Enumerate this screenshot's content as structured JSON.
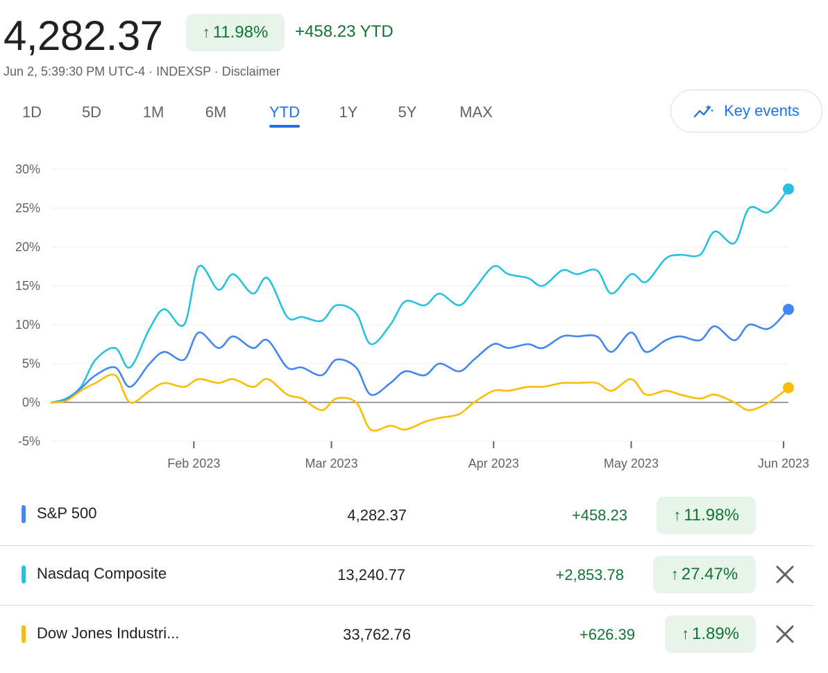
{
  "header": {
    "price": "4,282.37",
    "pct_change": "11.98%",
    "abs_change": "+458.23 YTD",
    "meta": "Jun 2, 5:39:30 PM UTC-4 · INDEXSP · Disclaimer"
  },
  "tabs": [
    {
      "label": "1D",
      "active": false
    },
    {
      "label": "5D",
      "active": false
    },
    {
      "label": "1M",
      "active": false
    },
    {
      "label": "6M",
      "active": false
    },
    {
      "label": "YTD",
      "active": true
    },
    {
      "label": "1Y",
      "active": false
    },
    {
      "label": "5Y",
      "active": false
    },
    {
      "label": "MAX",
      "active": false
    }
  ],
  "key_events": {
    "label": "Key events",
    "icon": "sparkline-chart-icon"
  },
  "colors": {
    "sp500": "#4285f4",
    "nasdaq": "#24c1e0",
    "dow": "#fbbc04",
    "positive": "#137333",
    "positive_bg": "#e6f4ea",
    "accent": "#1a73e8"
  },
  "chart_data": {
    "type": "line",
    "x_axis": {
      "type": "date",
      "range": [
        "2023-01-03",
        "2023-06-02"
      ],
      "tick_labels": [
        "Feb 2023",
        "Mar 2023",
        "Apr 2023",
        "May 2023",
        "Jun 2023"
      ],
      "ticks": [
        "2023-02-01",
        "2023-03-01",
        "2023-04-03",
        "2023-05-01",
        "2023-06-01"
      ]
    },
    "y_axis": {
      "range": [
        -5,
        30
      ],
      "tick_values": [
        -5,
        0,
        5,
        10,
        15,
        20,
        25,
        30
      ],
      "tick_labels": [
        "-5%",
        "0%",
        "5%",
        "10%",
        "15%",
        "20%",
        "25%",
        "30%"
      ],
      "unit": "%"
    },
    "grid": true,
    "x": [
      "2023-01-03",
      "2023-01-06",
      "2023-01-09",
      "2023-01-12",
      "2023-01-16",
      "2023-01-19",
      "2023-01-23",
      "2023-01-26",
      "2023-01-30",
      "2023-02-02",
      "2023-02-06",
      "2023-02-09",
      "2023-02-13",
      "2023-02-16",
      "2023-02-20",
      "2023-02-23",
      "2023-02-27",
      "2023-03-02",
      "2023-03-06",
      "2023-03-09",
      "2023-03-13",
      "2023-03-16",
      "2023-03-20",
      "2023-03-23",
      "2023-03-27",
      "2023-03-30",
      "2023-04-03",
      "2023-04-06",
      "2023-04-10",
      "2023-04-13",
      "2023-04-17",
      "2023-04-20",
      "2023-04-24",
      "2023-04-27",
      "2023-05-01",
      "2023-05-04",
      "2023-05-08",
      "2023-05-11",
      "2023-05-15",
      "2023-05-18",
      "2023-05-22",
      "2023-05-25",
      "2023-05-29",
      "2023-06-02"
    ],
    "series": [
      {
        "name": "Nasdaq Composite",
        "color": "#24c1e0",
        "values": [
          0,
          0.5,
          2,
          5.5,
          7,
          4.5,
          9.5,
          12,
          10,
          17.5,
          14.5,
          16.5,
          14,
          16,
          11,
          11,
          10.5,
          12.5,
          11.5,
          7.5,
          10,
          13,
          12.5,
          14,
          12.5,
          14.5,
          17.5,
          16.5,
          16,
          15,
          17,
          16.5,
          17,
          14,
          16.5,
          15.5,
          18.5,
          19,
          19,
          22,
          20.5,
          25,
          24.5,
          27.47
        ]
      },
      {
        "name": "S&P 500",
        "color": "#4285f4",
        "values": [
          0,
          0.3,
          1.8,
          3.5,
          4.5,
          2,
          5,
          6.5,
          5.5,
          9,
          7,
          8.5,
          7,
          8,
          4.5,
          4.5,
          3.5,
          5.5,
          4.5,
          1,
          2.5,
          4,
          3.5,
          5,
          4,
          5.5,
          7.5,
          7,
          7.5,
          7,
          8.5,
          8.5,
          8.5,
          6.5,
          9,
          6.5,
          8,
          8.5,
          8,
          9.8,
          8,
          10,
          9.5,
          11.98
        ]
      },
      {
        "name": "Dow Jones Industri...",
        "color": "#fbbc04",
        "values": [
          0,
          0.2,
          1.5,
          2.5,
          3.5,
          0,
          1.5,
          2.5,
          2,
          3,
          2.5,
          3,
          2,
          3,
          1,
          0.5,
          -1,
          0.5,
          0,
          -3.5,
          -3,
          -3.5,
          -2.5,
          -2,
          -1.5,
          0,
          1.5,
          1.5,
          2,
          2,
          2.5,
          2.5,
          2.5,
          1.5,
          3,
          1,
          1.5,
          1,
          0.5,
          1,
          0,
          -1,
          0,
          1.89
        ]
      }
    ]
  },
  "table": {
    "rows": [
      {
        "name": "S&P 500",
        "color": "#4285f4",
        "price": "4,282.37",
        "change": "+458.23",
        "pct": "11.98%",
        "removable": false
      },
      {
        "name": "Nasdaq Composite",
        "color": "#24c1e0",
        "price": "13,240.77",
        "change": "+2,853.78",
        "pct": "27.47%",
        "removable": true
      },
      {
        "name": "Dow Jones Industri...",
        "color": "#fbbc04",
        "price": "33,762.76",
        "change": "+626.39",
        "pct": "1.89%",
        "removable": true
      }
    ]
  }
}
